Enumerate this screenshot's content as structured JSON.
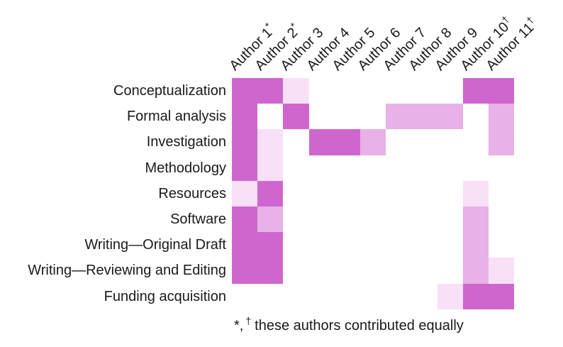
{
  "chart_data": {
    "type": "heatmap",
    "title": "",
    "columns": [
      {
        "label": "Author 1",
        "sup": "*"
      },
      {
        "label": "Author 2",
        "sup": "*"
      },
      {
        "label": "Author 3",
        "sup": ""
      },
      {
        "label": "Author 4",
        "sup": ""
      },
      {
        "label": "Author 5",
        "sup": ""
      },
      {
        "label": "Author 6",
        "sup": ""
      },
      {
        "label": "Author 7",
        "sup": ""
      },
      {
        "label": "Author 8",
        "sup": ""
      },
      {
        "label": "Author 9",
        "sup": ""
      },
      {
        "label": "Author 10",
        "sup": "†"
      },
      {
        "label": "Author 11",
        "sup": "†"
      }
    ],
    "rows": [
      "Conceptualization",
      "Formal analysis",
      "Investigation",
      "Methodology",
      "Resources",
      "Software",
      "Writing—Original Draft",
      "Writing—Reviewing and Editing",
      "Funding acquisition"
    ],
    "matrix": [
      [
        3,
        3,
        1,
        0,
        0,
        0,
        0,
        0,
        0,
        3,
        3
      ],
      [
        3,
        0,
        3,
        0,
        0,
        0,
        2,
        2,
        2,
        0,
        2
      ],
      [
        3,
        1,
        0,
        3,
        3,
        2,
        0,
        0,
        0,
        0,
        2
      ],
      [
        3,
        1,
        0,
        0,
        0,
        0,
        0,
        0,
        0,
        0,
        0
      ],
      [
        1,
        3,
        0,
        0,
        0,
        0,
        0,
        0,
        0,
        1,
        0
      ],
      [
        3,
        2,
        0,
        0,
        0,
        0,
        0,
        0,
        0,
        2,
        0
      ],
      [
        3,
        3,
        0,
        0,
        0,
        0,
        0,
        0,
        0,
        2,
        0
      ],
      [
        3,
        3,
        0,
        0,
        0,
        0,
        0,
        0,
        0,
        2,
        1
      ],
      [
        0,
        0,
        0,
        0,
        0,
        0,
        0,
        0,
        1,
        3,
        3
      ]
    ],
    "levels": {
      "0": "none",
      "1": "low",
      "2": "medium",
      "3": "high"
    },
    "palette": {
      "0": "#ffffff",
      "1": "#f8e0f6",
      "2": "#e8b1e7",
      "3": "#ce66ce"
    },
    "grid": false,
    "legend": "none",
    "footnote": {
      "star": "*,",
      "dagger": "†",
      "text": "these authors contributed equally"
    }
  }
}
